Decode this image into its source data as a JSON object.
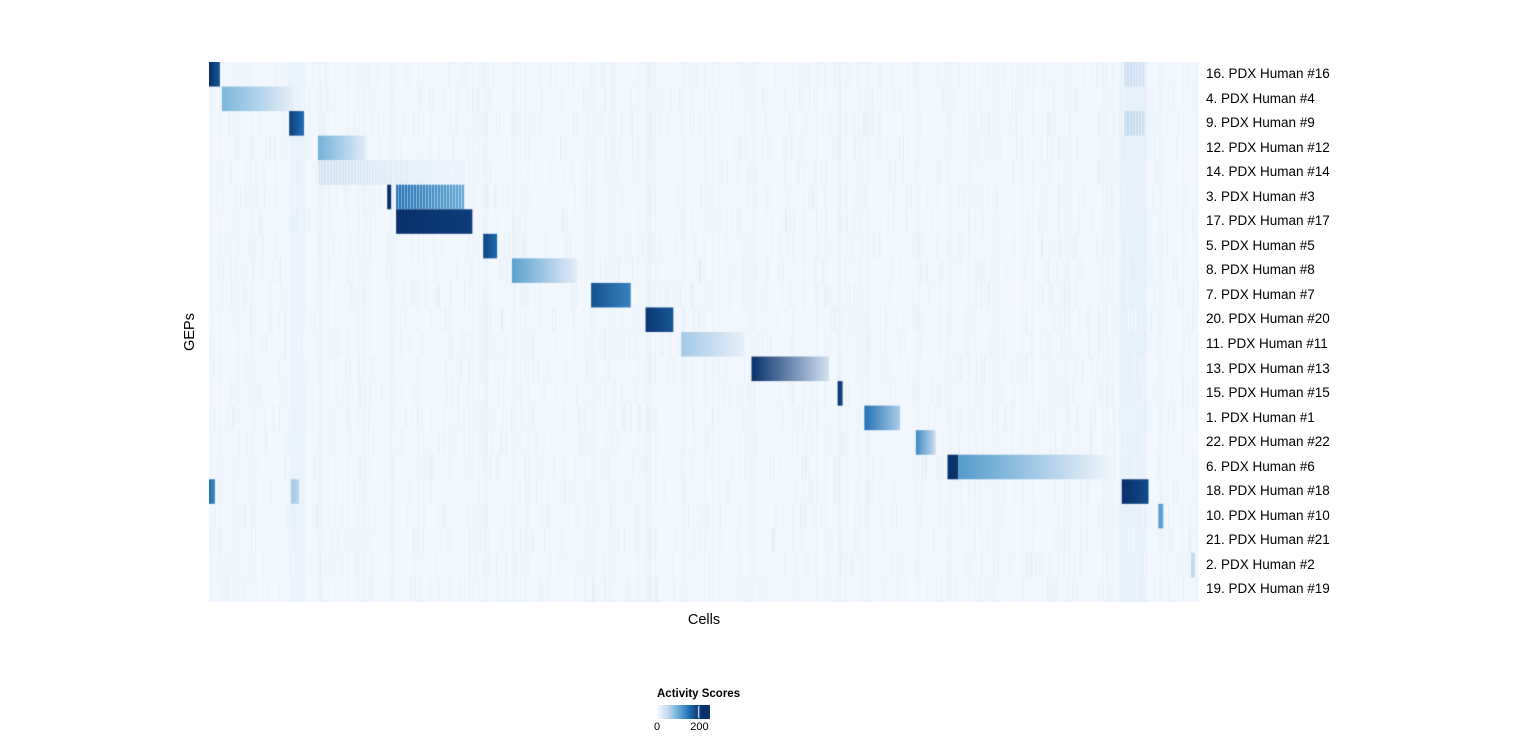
{
  "page": {
    "background": "#ffffff"
  },
  "chart_data": {
    "type": "heatmap",
    "title": "",
    "xlabel": "Cells",
    "ylabel": "GEPs",
    "value_range": [
      0,
      200
    ],
    "background_value": 6,
    "noise_seed": 20240817,
    "noise": {
      "full_stripes": 170,
      "full_max": 10,
      "row_stripes": 150,
      "row_max": 16
    },
    "colormap_stops": [
      {
        "t": 0.0,
        "c": "#f7fbff"
      },
      {
        "t": 0.25,
        "c": "#c6dbef"
      },
      {
        "t": 0.5,
        "c": "#6baed6"
      },
      {
        "t": 0.75,
        "c": "#2171b5"
      },
      {
        "t": 1.0,
        "c": "#08306b"
      }
    ],
    "legend": {
      "title": "Activity Scores",
      "max_pos": 0.8,
      "ticks": [
        {
          "label": "0",
          "pos": 0.0
        },
        {
          "label": "200",
          "pos": 0.8
        }
      ]
    },
    "bands": [
      {
        "x": 0.081,
        "w": 0.016,
        "v": 13
      },
      {
        "x": 0.11,
        "w": 0.004,
        "v": 12
      },
      {
        "x": 0.155,
        "w": 0.003,
        "v": 10
      },
      {
        "x": 0.183,
        "w": 0.004,
        "v": 12
      },
      {
        "x": 0.277,
        "w": 0.005,
        "v": 12
      },
      {
        "x": 0.306,
        "w": 0.004,
        "v": 10
      },
      {
        "x": 0.386,
        "w": 0.004,
        "v": 10
      },
      {
        "x": 0.441,
        "w": 0.006,
        "v": 12
      },
      {
        "x": 0.477,
        "w": 0.004,
        "v": 10
      },
      {
        "x": 0.548,
        "w": 0.004,
        "v": 10
      },
      {
        "x": 0.635,
        "w": 0.004,
        "v": 12
      },
      {
        "x": 0.663,
        "w": 0.004,
        "v": 10
      },
      {
        "x": 0.714,
        "w": 0.004,
        "v": 10
      },
      {
        "x": 0.746,
        "w": 0.004,
        "v": 10
      },
      {
        "x": 0.92,
        "w": 0.027,
        "v": 16
      },
      {
        "x": 0.959,
        "w": 0.004,
        "v": 10
      }
    ],
    "rows": [
      {
        "label": "16. PDX Human #16",
        "blocks": [
          {
            "x0": 0.0,
            "x1": 0.011,
            "v0": 200,
            "v1": 170
          },
          {
            "x0": 0.925,
            "x1": 0.946,
            "v0": 45,
            "v1": 35,
            "striped": true
          }
        ]
      },
      {
        "label": "4. PDX Human #4",
        "blocks": [
          {
            "x0": 0.013,
            "x1": 0.085,
            "v0": 90,
            "v1": 18
          }
        ]
      },
      {
        "label": "9. PDX Human #9",
        "blocks": [
          {
            "x0": 0.081,
            "x1": 0.096,
            "v0": 190,
            "v1": 150
          },
          {
            "x0": 0.925,
            "x1": 0.946,
            "v0": 55,
            "v1": 40,
            "striped": true
          }
        ]
      },
      {
        "label": "12. PDX Human #12",
        "blocks": [
          {
            "x0": 0.11,
            "x1": 0.158,
            "v0": 95,
            "v1": 25
          }
        ]
      },
      {
        "label": "14. PDX Human #14",
        "blocks": [
          {
            "x0": 0.111,
            "x1": 0.186,
            "v0": 38,
            "v1": 22,
            "striped": true
          },
          {
            "x0": 0.187,
            "x1": 0.258,
            "v0": 22,
            "v1": 12,
            "striped": true
          }
        ]
      },
      {
        "label": "3. PDX Human #3",
        "blocks": [
          {
            "x0": 0.18,
            "x1": 0.184,
            "v0": 200,
            "v1": 200
          },
          {
            "x0": 0.189,
            "x1": 0.258,
            "v0": 150,
            "v1": 105,
            "striped": true
          }
        ]
      },
      {
        "label": "17. PDX Human #17",
        "blocks": [
          {
            "x0": 0.189,
            "x1": 0.266,
            "v0": 200,
            "v1": 190
          }
        ]
      },
      {
        "label": "5. PDX Human #5",
        "blocks": [
          {
            "x0": 0.277,
            "x1": 0.291,
            "v0": 185,
            "v1": 155
          }
        ]
      },
      {
        "label": "8. PDX Human #8",
        "blocks": [
          {
            "x0": 0.306,
            "x1": 0.372,
            "v0": 110,
            "v1": 20
          }
        ]
      },
      {
        "label": "7. PDX Human #7",
        "blocks": [
          {
            "x0": 0.386,
            "x1": 0.426,
            "v0": 175,
            "v1": 135
          }
        ]
      },
      {
        "label": "20. PDX Human #20",
        "blocks": [
          {
            "x0": 0.441,
            "x1": 0.469,
            "v0": 195,
            "v1": 170
          }
        ]
      },
      {
        "label": "11. PDX Human #11",
        "blocks": [
          {
            "x0": 0.477,
            "x1": 0.541,
            "v0": 70,
            "v1": 15
          }
        ]
      },
      {
        "label": "13. PDX Human #13",
        "blocks": [
          {
            "x0": 0.548,
            "x1": 0.626,
            "v0": 200,
            "v1": 40
          }
        ]
      },
      {
        "label": "15. PDX Human #15",
        "blocks": [
          {
            "x0": 0.635,
            "x1": 0.64,
            "v0": 200,
            "v1": 180
          }
        ]
      },
      {
        "label": "1. PDX Human #1",
        "blocks": [
          {
            "x0": 0.662,
            "x1": 0.698,
            "v0": 150,
            "v1": 65
          }
        ]
      },
      {
        "label": "22. PDX Human #22",
        "blocks": [
          {
            "x0": 0.714,
            "x1": 0.734,
            "v0": 130,
            "v1": 45
          }
        ]
      },
      {
        "label": "6. PDX Human #6",
        "blocks": [
          {
            "x0": 0.746,
            "x1": 0.757,
            "v0": 200,
            "v1": 195
          },
          {
            "x0": 0.757,
            "x1": 0.912,
            "v0": 115,
            "v1": 6
          }
        ]
      },
      {
        "label": "18. PDX Human #18",
        "blocks": [
          {
            "x0": 0.0,
            "x1": 0.006,
            "v0": 150,
            "v1": 130
          },
          {
            "x0": 0.083,
            "x1": 0.091,
            "v0": 70,
            "v1": 55
          },
          {
            "x0": 0.922,
            "x1": 0.949,
            "v0": 200,
            "v1": 180
          }
        ]
      },
      {
        "label": "10. PDX Human #10",
        "blocks": [
          {
            "x0": 0.959,
            "x1": 0.964,
            "v0": 120,
            "v1": 100
          }
        ]
      },
      {
        "label": "21. PDX Human #21",
        "blocks": []
      },
      {
        "label": "2. PDX Human #2",
        "blocks": [
          {
            "x0": 0.992,
            "x1": 0.996,
            "v0": 55,
            "v1": 45
          }
        ]
      },
      {
        "label": "19. PDX Human #19",
        "blocks": []
      }
    ]
  }
}
